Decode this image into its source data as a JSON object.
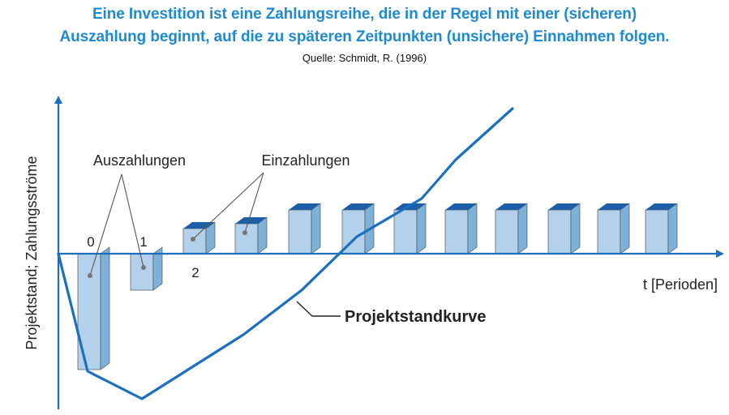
{
  "header": {
    "title_line1": "Eine Investition ist eine Zahlungsreihe, die in der Regel mit einer (sicheren)",
    "title_line2": "Auszahlung beginnt, auf die zu späteren Zeitpunkten (unsichere) Einnahmen folgen.",
    "source": "Quelle: Schmidt, R. (1996)"
  },
  "diagram": {
    "y_axis_label": "Projektstand; Zahlungsströme",
    "x_axis_label": "t [Perioden]",
    "period_labels": [
      "0",
      "1",
      "2"
    ],
    "label_auszahlungen": "Auszahlungen",
    "label_einzahlungen": "Einzahlungen",
    "curve_label": "Projektstandkurve"
  },
  "colors": {
    "title": "#1f8ad0",
    "bar_front": "#b3d1ea",
    "bar_side": "#7eb1d8",
    "bar_top": "#1c5fa6",
    "curve": "#1a6fc0",
    "axis": "#1a6fc0"
  }
}
